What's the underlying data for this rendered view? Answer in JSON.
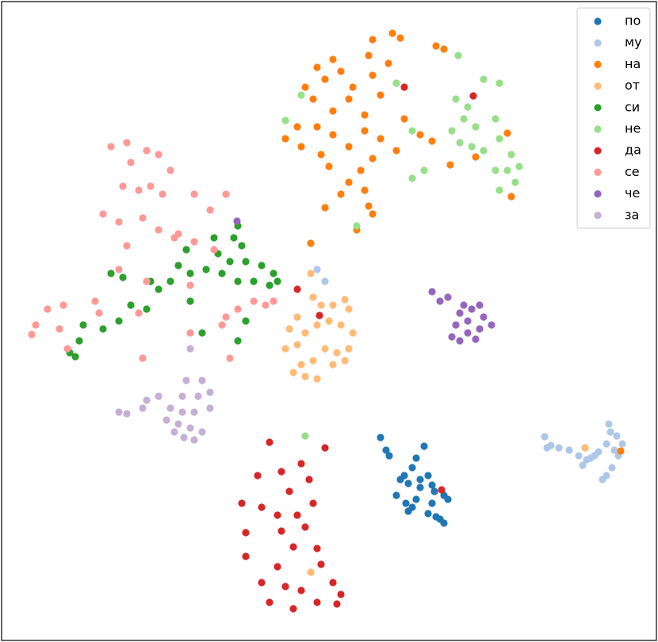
{
  "chart_data": {
    "type": "scatter",
    "legend": "upper right",
    "xlim": [
      2,
      828
    ],
    "ylim": [
      0,
      806
    ],
    "series": [
      {
        "name": "по",
        "color": "#1f77b4",
        "x": [
          480,
          487,
          491,
          535,
          525,
          520,
          510,
          505,
          515,
          540,
          530,
          500,
          512,
          520,
          515,
          548,
          560,
          565,
          545,
          540,
          550,
          560,
          555,
          525,
          530,
          545
        ],
        "y": [
          256,
          240,
          233,
          245,
          230,
          218,
          208,
          203,
          198,
          208,
          193,
          183,
          173,
          168,
          163,
          188,
          183,
          178,
          173,
          160,
          156,
          148,
          153,
          178,
          203,
          196
        ]
      },
      {
        "name": "му",
        "color": "#aec7e8",
        "x": [
          687,
          695,
          705,
          718,
          730,
          735,
          745,
          755,
          765,
          770,
          768,
          778,
          785,
          780,
          772,
          765,
          760,
          750,
          740,
          400,
          410,
          392,
          690,
          775
        ],
        "y": [
          257,
          246,
          243,
          240,
          233,
          221,
          230,
          238,
          248,
          263,
          273,
          258,
          248,
          233,
          218,
          208,
          203,
          233,
          228,
          468,
          453,
          463,
          243,
          240
        ]
      },
      {
        "name": "на",
        "color": "#ff7f0e",
        "x": [
          470,
          495,
          505,
          550,
          560,
          420,
          400,
          410,
          430,
          445,
          465,
          470,
          490,
          480,
          500,
          385,
          395,
          420,
          440,
          460,
          375,
          360,
          380,
          400,
          420,
          440,
          460,
          480,
          500,
          470,
          455,
          460,
          465,
          470,
          440,
          430,
          410,
          450,
          392,
          510,
          530,
          545,
          568,
          600,
          640,
          645,
          405,
          415,
          738,
          783
        ],
        "y": [
          758,
          766,
          760,
          750,
          746,
          733,
          723,
          708,
          718,
          698,
          738,
          713,
          728,
          688,
          703,
          698,
          683,
          668,
          683,
          663,
          648,
          633,
          623,
          648,
          638,
          623,
          643,
          633,
          618,
          608,
          593,
          568,
          548,
          538,
          578,
          563,
          546,
          518,
          501,
          658,
          638,
          630,
          600,
          610,
          640,
          560,
          613,
          598,
          243,
          239
        ]
      },
      {
        "name": "от",
        "color": "#ffbb78",
        "x": [
          392,
          395,
          405,
          420,
          435,
          440,
          375,
          365,
          385,
          400,
          415,
          430,
          445,
          440,
          425,
          410,
          395,
          380,
          370,
          385,
          400,
          360,
          375,
          420,
          435,
          392,
          738
        ],
        "y": [
          463,
          433,
          423,
          423,
          430,
          418,
          408,
          393,
          388,
          398,
          403,
          398,
          388,
          368,
          363,
          368,
          353,
          348,
          338,
          333,
          330,
          368,
          373,
          348,
          353,
          86,
          243
        ]
      },
      {
        "name": "си",
        "color": "#2ca02c",
        "x": [
          300,
          295,
          305,
          270,
          275,
          290,
          310,
          330,
          345,
          350,
          340,
          320,
          300,
          280,
          260,
          240,
          225,
          215,
          200,
          190,
          140,
          155,
          185,
          165,
          150,
          130,
          105,
          100,
          95,
          88,
          240,
          255,
          300,
          310,
          235
        ],
        "y": [
          523,
          508,
          498,
          508,
          488,
          478,
          478,
          473,
          463,
          453,
          448,
          453,
          453,
          463,
          468,
          463,
          473,
          453,
          443,
          453,
          463,
          458,
          418,
          423,
          403,
          393,
          398,
          378,
          358,
          363,
          428,
          388,
          378,
          403,
          493
        ]
      },
      {
        "name": "не",
        "color": "#98df8a",
        "x": [
          578,
          610,
          630,
          575,
          590,
          585,
          570,
          600,
          625,
          595,
          580,
          610,
          630,
          645,
          640,
          650,
          625,
          630,
          655,
          360,
          380,
          500,
          520,
          535,
          520,
          450,
          385
        ],
        "y": [
          738,
          708,
          703,
          683,
          673,
          658,
          643,
          648,
          658,
          623,
          628,
          618,
          633,
          613,
          593,
          578,
          593,
          568,
          598,
          656,
          688,
          703,
          643,
          593,
          583,
          523,
          258
        ]
      },
      {
        "name": "да",
        "color": "#d62728",
        "x": [
          340,
          410,
          380,
          355,
          325,
          390,
          365,
          305,
          330,
          350,
          375,
          395,
          385,
          355,
          310,
          370,
          400,
          310,
          350,
          405,
          330,
          360,
          380,
          420,
          430,
          340,
          370,
          400,
          425,
          510,
          597,
          375,
          403,
          557
        ],
        "y": [
          250,
          243,
          223,
          213,
          208,
          203,
          188,
          173,
          168,
          158,
          158,
          173,
          143,
          138,
          136,
          118,
          116,
          106,
          93,
          96,
          73,
          68,
          63,
          73,
          58,
          48,
          40,
          48,
          46,
          698,
          687,
          443,
          410,
          190
        ]
      },
      {
        "name": "се",
        "color": "#ff9896",
        "x": [
          140,
          160,
          185,
          200,
          165,
          215,
          155,
          175,
          190,
          205,
          245,
          285,
          265,
          130,
          150,
          180,
          200,
          225,
          245,
          270,
          160,
          150,
          185,
          120,
          80,
          60,
          45,
          40,
          75,
          85,
          125,
          175,
          180,
          240,
          285,
          280,
          300,
          320,
          335,
          345,
          290,
          240,
          220
        ],
        "y": [
          623,
          628,
          618,
          613,
          603,
          593,
          573,
          568,
          573,
          563,
          563,
          563,
          543,
          538,
          528,
          533,
          518,
          513,
          503,
          493,
          498,
          468,
          453,
          428,
          423,
          418,
          398,
          386,
          393,
          368,
          413,
          413,
          356,
          388,
          408,
          398,
          418,
          428,
          423,
          428,
          356,
          448,
          508
        ]
      },
      {
        "name": "че",
        "color": "#9467bd",
        "x": [
          545,
          555,
          565,
          585,
          595,
          605,
          580,
          590,
          610,
          620,
          575,
          590,
          600,
          570,
          580,
          605,
          299
        ],
        "y": [
          440,
          428,
          433,
          423,
          418,
          423,
          413,
          403,
          408,
          398,
          398,
          388,
          380,
          383,
          378,
          393,
          529
        ]
      },
      {
        "name": "за",
        "color": "#c5b0d5",
        "x": [
          240,
          235,
          255,
          265,
          250,
          230,
          200,
          185,
          180,
          150,
          160,
          215,
          230,
          245,
          265,
          210,
          225,
          240,
          255,
          220,
          245,
          232
        ],
        "y": [
          368,
          328,
          328,
          313,
          308,
          308,
          308,
          303,
          293,
          288,
          286,
          293,
          288,
          288,
          293,
          278,
          273,
          268,
          263,
          263,
          253,
          256
        ]
      }
    ]
  }
}
